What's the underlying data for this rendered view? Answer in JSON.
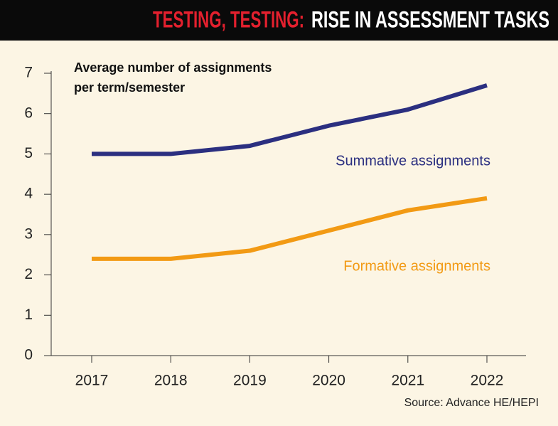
{
  "chart_data": {
    "type": "line",
    "title_prefix": "TESTING, TESTING:",
    "title": "RISE IN ASSESSMENT TASKS",
    "y_label": [
      "Average number of assignments",
      "per term/semester"
    ],
    "source": "Source: Advance HE/HEPI",
    "categories": [
      "2017",
      "2018",
      "2019",
      "2020",
      "2021",
      "2022"
    ],
    "series": [
      {
        "name": "Summative assignments",
        "color": "#2b2f80",
        "values": [
          5,
          5,
          5.2,
          5.7,
          6.1,
          6.7
        ]
      },
      {
        "name": "Formative assignments",
        "color": "#f29a14",
        "values": [
          2.4,
          2.4,
          2.6,
          3.1,
          3.6,
          3.9
        ]
      }
    ],
    "ylim": [
      0,
      7
    ],
    "yticks": [
      0,
      1,
      2,
      3,
      4,
      5,
      6,
      7
    ],
    "grid": false
  }
}
